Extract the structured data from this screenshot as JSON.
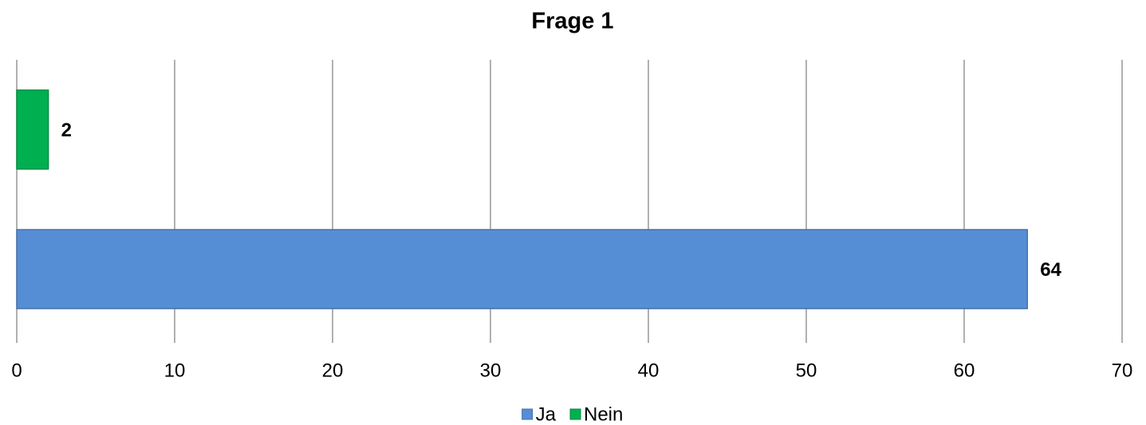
{
  "chart_data": {
    "type": "bar",
    "orientation": "horizontal",
    "title": "Frage 1",
    "categories": [
      null
    ],
    "series": [
      {
        "name": "Ja",
        "color": "#558ed5",
        "values": [
          64
        ]
      },
      {
        "name": "Nein",
        "color": "#00b050",
        "values": [
          2
        ]
      }
    ],
    "xlim": [
      0,
      70
    ],
    "xticks": [
      0,
      10,
      20,
      30,
      40,
      50,
      60,
      70
    ],
    "grid": true,
    "legend": "bottom"
  }
}
